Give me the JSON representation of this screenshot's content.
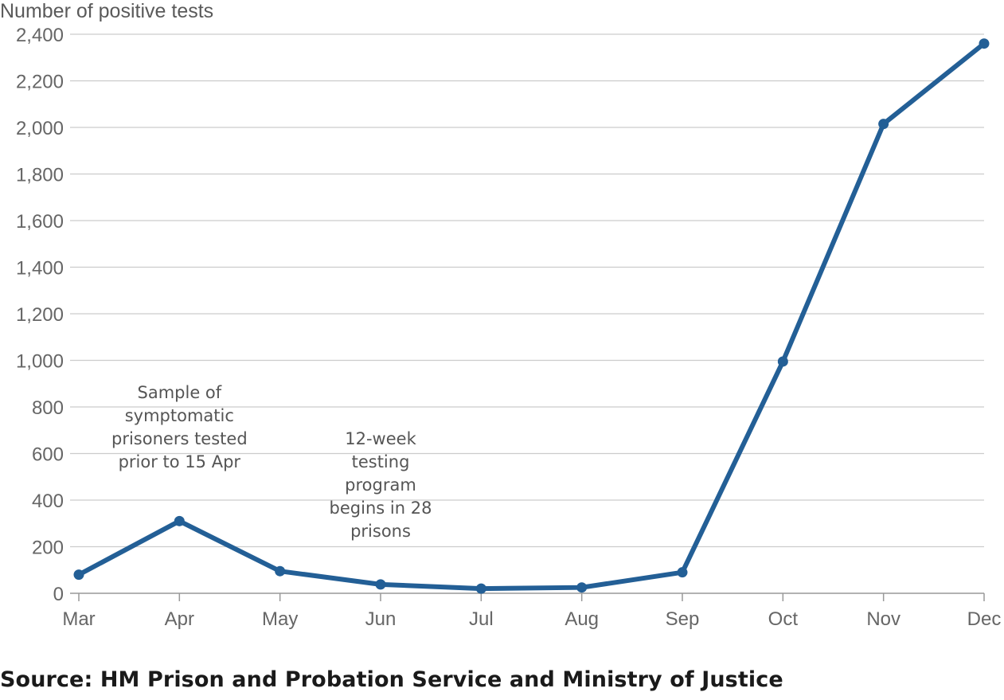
{
  "chart_data": {
    "type": "line",
    "title": "",
    "ylabel": "Number of positive tests",
    "xlabel": "",
    "categories": [
      "Mar",
      "Apr",
      "May",
      "Jun",
      "Jul",
      "Aug",
      "Sep",
      "Oct",
      "Nov",
      "Dec"
    ],
    "series": [
      {
        "values": [
          80,
          310,
          95,
          38,
          20,
          25,
          90,
          995,
          2015,
          2360
        ]
      }
    ],
    "ylim": [
      0,
      2400
    ],
    "yticks": [
      0,
      200,
      400,
      600,
      800,
      1000,
      1200,
      1400,
      1600,
      1800,
      2000,
      2200,
      2400
    ],
    "ytick_labels": [
      "0",
      "200",
      "400",
      "600",
      "800",
      "1,000",
      "1,200",
      "1,400",
      "1,600",
      "1,800",
      "2,000",
      "2,200",
      "2,400"
    ],
    "grid": true,
    "legend": "none",
    "colors": {
      "line": "#235f96",
      "grid": "#cccccc",
      "axis": "#999999"
    },
    "annotations": [
      {
        "category": "Apr",
        "lines": [
          "Sample of",
          "symptomatic",
          "prisoners tested",
          "prior to 15 Apr"
        ]
      },
      {
        "category": "Jun",
        "lines": [
          "12-week",
          "testing",
          "program",
          "begins in 28",
          "prisons"
        ]
      }
    ]
  },
  "source": "Source: HM Prison and Probation Service and Ministry of Justice"
}
